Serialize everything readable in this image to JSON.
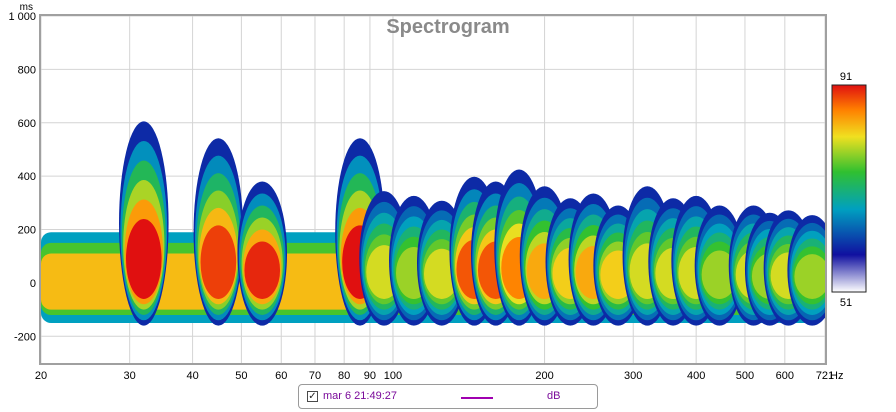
{
  "chart_data": {
    "type": "heatmap",
    "title": "Spectrogram",
    "x_unit": "Hz",
    "y_unit": "ms",
    "x_scale": "log",
    "x_range": [
      20,
      721
    ],
    "y_range": [
      -300,
      1000
    ],
    "x_ticks": [
      {
        "value": 20,
        "label": "20"
      },
      {
        "value": 30,
        "label": "30"
      },
      {
        "value": 40,
        "label": "40"
      },
      {
        "value": 50,
        "label": "50"
      },
      {
        "value": 60,
        "label": "60"
      },
      {
        "value": 70,
        "label": "70"
      },
      {
        "value": 80,
        "label": "80"
      },
      {
        "value": 90,
        "label": "90"
      },
      {
        "value": 100,
        "label": "100"
      },
      {
        "value": 200,
        "label": "200"
      },
      {
        "value": 300,
        "label": "300"
      },
      {
        "value": 400,
        "label": "400"
      },
      {
        "value": 500,
        "label": "500"
      },
      {
        "value": 600,
        "label": "600"
      },
      {
        "value": 721,
        "label": "721"
      }
    ],
    "y_ticks": [
      {
        "value": 1000,
        "label": "1 000"
      },
      {
        "value": 800,
        "label": "800"
      },
      {
        "value": 600,
        "label": "600"
      },
      {
        "value": 400,
        "label": "400"
      },
      {
        "value": 200,
        "label": "200"
      },
      {
        "value": 0,
        "label": "0"
      },
      {
        "value": -200,
        "label": "-200"
      }
    ],
    "colorbar": {
      "min": 51,
      "max": 91,
      "min_label": "51",
      "max_label": "91",
      "colors": [
        "#ffffff",
        "#1010a0",
        "#00a0c0",
        "#30c030",
        "#f0e020",
        "#ff8000",
        "#e01010"
      ]
    },
    "grid": true,
    "legend": "bottom-center",
    "series": [
      {
        "name": "mar 6 21:49:27",
        "unit": "dB",
        "color": "#a000b0",
        "checked": true
      }
    ],
    "peaks": [
      {
        "freq": 32,
        "decay_ms": 650,
        "level_db": 91
      },
      {
        "freq": 45,
        "decay_ms": 580,
        "level_db": 89
      },
      {
        "freq": 55,
        "decay_ms": 400,
        "level_db": 90
      },
      {
        "freq": 86,
        "decay_ms": 580,
        "level_db": 91
      },
      {
        "freq": 96,
        "decay_ms": 360,
        "level_db": 80
      },
      {
        "freq": 110,
        "decay_ms": 340,
        "level_db": 78
      },
      {
        "freq": 125,
        "decay_ms": 320,
        "level_db": 80
      },
      {
        "freq": 145,
        "decay_ms": 420,
        "level_db": 88
      },
      {
        "freq": 160,
        "decay_ms": 400,
        "level_db": 88
      },
      {
        "freq": 178,
        "decay_ms": 450,
        "level_db": 86
      },
      {
        "freq": 200,
        "decay_ms": 380,
        "level_db": 84
      },
      {
        "freq": 225,
        "decay_ms": 330,
        "level_db": 82
      },
      {
        "freq": 250,
        "decay_ms": 350,
        "level_db": 84
      },
      {
        "freq": 280,
        "decay_ms": 300,
        "level_db": 82
      },
      {
        "freq": 320,
        "decay_ms": 380,
        "level_db": 80
      },
      {
        "freq": 360,
        "decay_ms": 330,
        "level_db": 80
      },
      {
        "freq": 400,
        "decay_ms": 340,
        "level_db": 80
      },
      {
        "freq": 445,
        "decay_ms": 300,
        "level_db": 78
      },
      {
        "freq": 520,
        "decay_ms": 300,
        "level_db": 80
      },
      {
        "freq": 560,
        "decay_ms": 270,
        "level_db": 78
      },
      {
        "freq": 610,
        "decay_ms": 280,
        "level_db": 80
      },
      {
        "freq": 680,
        "decay_ms": 260,
        "level_db": 78
      }
    ]
  }
}
